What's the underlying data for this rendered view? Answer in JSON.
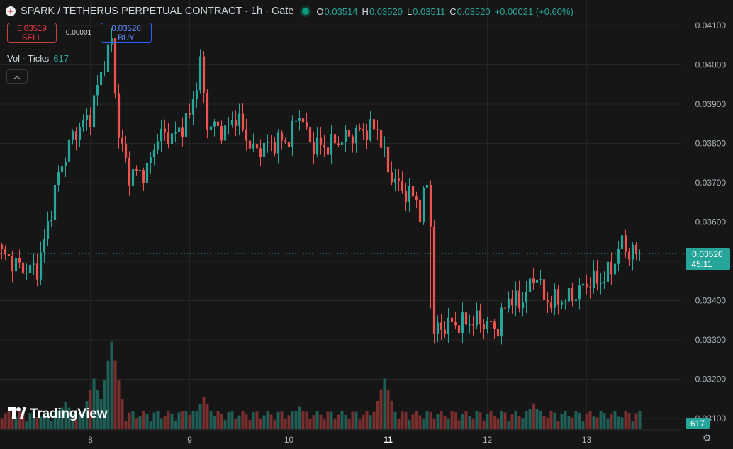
{
  "header": {
    "title": "SPARK / TETHERUS PERPETUAL CONTRACT · 1h · Gate",
    "ohlc": [
      {
        "k": "O",
        "v": "0.03514"
      },
      {
        "k": "H",
        "v": "0.03520"
      },
      {
        "k": "L",
        "v": "0.03511"
      },
      {
        "k": "C",
        "v": "0.03520"
      },
      {
        "k": "",
        "v": "+0.00021 (+0.60%)"
      }
    ]
  },
  "trade": {
    "sell_price": "0.03519",
    "sell_label": "SELL",
    "spread": "0.00001",
    "buy_price": "0.03520",
    "buy_label": "BUY"
  },
  "volume_legend": {
    "label": "Vol · Ticks",
    "value": "617"
  },
  "collapse_icon": "chevron-up-icon",
  "brand": "TradingView",
  "colors": {
    "up": "#26a69a",
    "down": "#ef5350",
    "background": "#161616",
    "grid": "#262626",
    "price_tag": "#26a69a"
  },
  "chart_data": {
    "type": "candlestick",
    "timeframe": "1h",
    "x_tick_labels": [
      {
        "label": "8",
        "index": 25,
        "bold": false
      },
      {
        "label": "9",
        "index": 53,
        "bold": false
      },
      {
        "label": "10",
        "index": 81,
        "bold": false
      },
      {
        "label": "11",
        "index": 109,
        "bold": true
      },
      {
        "label": "12",
        "index": 137,
        "bold": false
      },
      {
        "label": "13",
        "index": 165,
        "bold": false
      }
    ],
    "y_range": [
      0.031,
      0.0415
    ],
    "y_tick_labels": [
      "0.04100",
      "0.04000",
      "0.03900",
      "0.03800",
      "0.03700",
      "0.03600",
      "0.03500",
      "0.03400",
      "0.03300",
      "0.03200",
      "0.03100"
    ],
    "current_price": {
      "value": 0.0352,
      "label": "0.03520",
      "countdown": "45:11"
    },
    "volume_label": "617",
    "key_points": [
      [
        0,
        0.0352
      ],
      [
        6,
        0.0348
      ],
      [
        10,
        0.0348
      ],
      [
        12,
        0.0355
      ],
      [
        16,
        0.0372
      ],
      [
        20,
        0.0382
      ],
      [
        25,
        0.0387
      ],
      [
        28,
        0.0398
      ],
      [
        31,
        0.0406
      ],
      [
        33,
        0.0382
      ],
      [
        36,
        0.0372
      ],
      [
        41,
        0.0373
      ],
      [
        44,
        0.0382
      ],
      [
        49,
        0.0382
      ],
      [
        53,
        0.0387
      ],
      [
        56,
        0.04
      ],
      [
        58,
        0.0385
      ],
      [
        63,
        0.0383
      ],
      [
        66,
        0.0387
      ],
      [
        71,
        0.0378
      ],
      [
        76,
        0.038
      ],
      [
        81,
        0.0381
      ],
      [
        84,
        0.0388
      ],
      [
        87,
        0.038
      ],
      [
        91,
        0.0379
      ],
      [
        96,
        0.0381
      ],
      [
        101,
        0.0383
      ],
      [
        106,
        0.0384
      ],
      [
        109,
        0.0373
      ],
      [
        113,
        0.0368
      ],
      [
        117,
        0.0366
      ],
      [
        118,
        0.0362
      ],
      [
        120,
        0.037
      ],
      [
        121,
        0.036
      ],
      [
        122,
        0.0332
      ],
      [
        126,
        0.0334
      ],
      [
        129,
        0.0334
      ],
      [
        134,
        0.0335
      ],
      [
        137,
        0.0334
      ],
      [
        140,
        0.0333
      ],
      [
        143,
        0.0341
      ],
      [
        146,
        0.0339
      ],
      [
        151,
        0.0347
      ],
      [
        153,
        0.034
      ],
      [
        157,
        0.034
      ],
      [
        161,
        0.0341
      ],
      [
        166,
        0.0345
      ],
      [
        169,
        0.0345
      ],
      [
        172,
        0.0348
      ],
      [
        175,
        0.0355
      ],
      [
        177,
        0.0352
      ],
      [
        180,
        0.0352
      ]
    ],
    "volumes_note": "relative volume bars, highest near index 108",
    "volume_peaks": [
      [
        0,
        0.12
      ],
      [
        18,
        0.3
      ],
      [
        26,
        0.55
      ],
      [
        31,
        0.95
      ],
      [
        52,
        0.2
      ],
      [
        57,
        0.35
      ],
      [
        84,
        0.25
      ],
      [
        108,
        0.55
      ],
      [
        123,
        0.15
      ],
      [
        150,
        0.28
      ],
      [
        170,
        0.15
      ]
    ]
  }
}
